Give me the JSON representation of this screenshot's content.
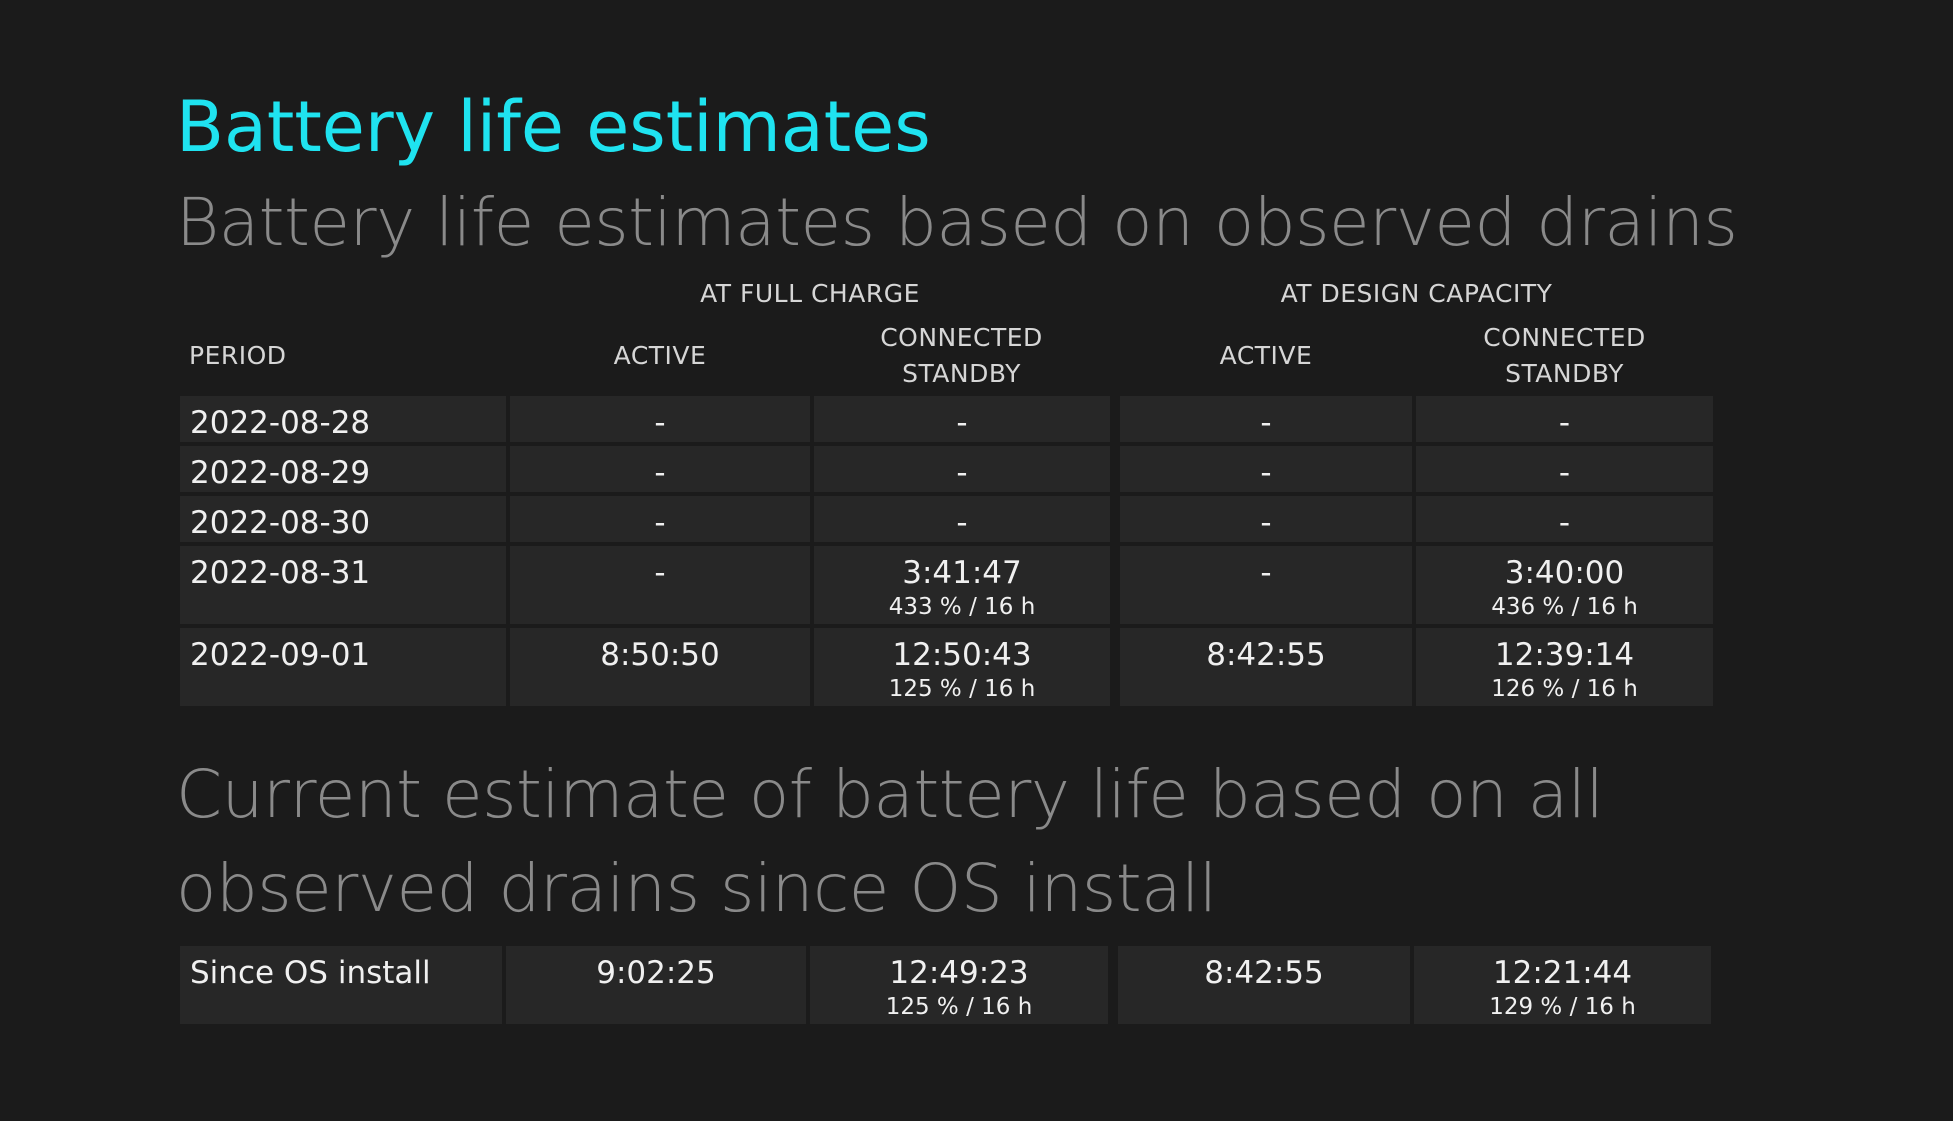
{
  "title": "Battery life estimates",
  "section1_heading": "Battery life estimates based on observed drains",
  "group_headers": {
    "full_charge": "AT FULL CHARGE",
    "design_capacity": "AT DESIGN CAPACITY"
  },
  "column_headers": {
    "period": "PERIOD",
    "fc_active": "ACTIVE",
    "fc_standby_line1": "CONNECTED",
    "fc_standby_line2": "STANDBY",
    "dc_active": "ACTIVE",
    "dc_standby_line1": "CONNECTED",
    "dc_standby_line2": "STANDBY"
  },
  "rows": [
    {
      "period": "2022-08-28",
      "fc_active": "-",
      "fc_standby": "-",
      "fc_standby_sub": "",
      "dc_active": "-",
      "dc_standby": "-",
      "dc_standby_sub": ""
    },
    {
      "period": "2022-08-29",
      "fc_active": "-",
      "fc_standby": "-",
      "fc_standby_sub": "",
      "dc_active": "-",
      "dc_standby": "-",
      "dc_standby_sub": ""
    },
    {
      "period": "2022-08-30",
      "fc_active": "-",
      "fc_standby": "-",
      "fc_standby_sub": "",
      "dc_active": "-",
      "dc_standby": "-",
      "dc_standby_sub": ""
    },
    {
      "period": "2022-08-31",
      "fc_active": "-",
      "fc_standby": "3:41:47",
      "fc_standby_sub": "433 % / 16 h",
      "dc_active": "-",
      "dc_standby": "3:40:00",
      "dc_standby_sub": "436 % / 16 h"
    },
    {
      "period": "2022-09-01",
      "fc_active": "8:50:50",
      "fc_standby": "12:50:43",
      "fc_standby_sub": "125 % / 16 h",
      "dc_active": "8:42:55",
      "dc_standby": "12:39:14",
      "dc_standby_sub": "126 % / 16 h"
    }
  ],
  "section2_heading": "Current estimate of battery life based on all observed drains since OS install",
  "since_install": {
    "period": "Since OS install",
    "fc_active": "9:02:25",
    "fc_standby": "12:49:23",
    "fc_standby_sub": "125 % / 16 h",
    "dc_active": "8:42:55",
    "dc_standby": "12:21:44",
    "dc_standby_sub": "129 % / 16 h"
  },
  "colors": {
    "background": "#1b1b1b",
    "cell": "#272727",
    "title_accent": "#1fe3f0",
    "heading_gray": "#8a8a8a"
  }
}
